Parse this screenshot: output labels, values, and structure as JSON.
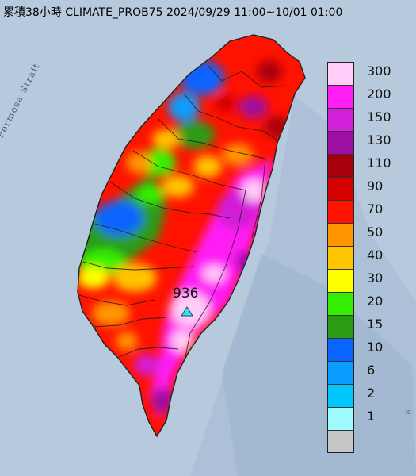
{
  "title": "累積38小時 CLIMATE_PROB75 2024/09/29 11:00~10/01 01:00",
  "strait_label": "Formosa Strait",
  "edge_label": "ıc",
  "max_station": {
    "value": "936"
  },
  "legend": [
    {
      "label": "300",
      "color": "#ffcdf7"
    },
    {
      "label": "200",
      "color": "#ff1ff5"
    },
    {
      "label": "150",
      "color": "#d21fd8"
    },
    {
      "label": "130",
      "color": "#9c0fa2"
    },
    {
      "label": "110",
      "color": "#a8000a"
    },
    {
      "label": "90",
      "color": "#d50000"
    },
    {
      "label": "70",
      "color": "#ff1200"
    },
    {
      "label": "50",
      "color": "#ff9500"
    },
    {
      "label": "40",
      "color": "#ffc400"
    },
    {
      "label": "30",
      "color": "#ffff00"
    },
    {
      "label": "20",
      "color": "#34f000"
    },
    {
      "label": "15",
      "color": "#2a9c12"
    },
    {
      "label": "10",
      "color": "#0a64ff"
    },
    {
      "label": "6",
      "color": "#0a9cff"
    },
    {
      "label": "2",
      "color": "#00c8ff"
    },
    {
      "label": "1",
      "color": "#9efcff"
    },
    {
      "label": "",
      "color": "#c6c6c6"
    }
  ],
  "colors": {
    "sea": "#b7c9dc",
    "ocean_dark": "#9fb6cf",
    "outline": "#222222",
    "marker": "#3fe0e6"
  },
  "icons": [
    "triangle-marker-icon"
  ]
}
